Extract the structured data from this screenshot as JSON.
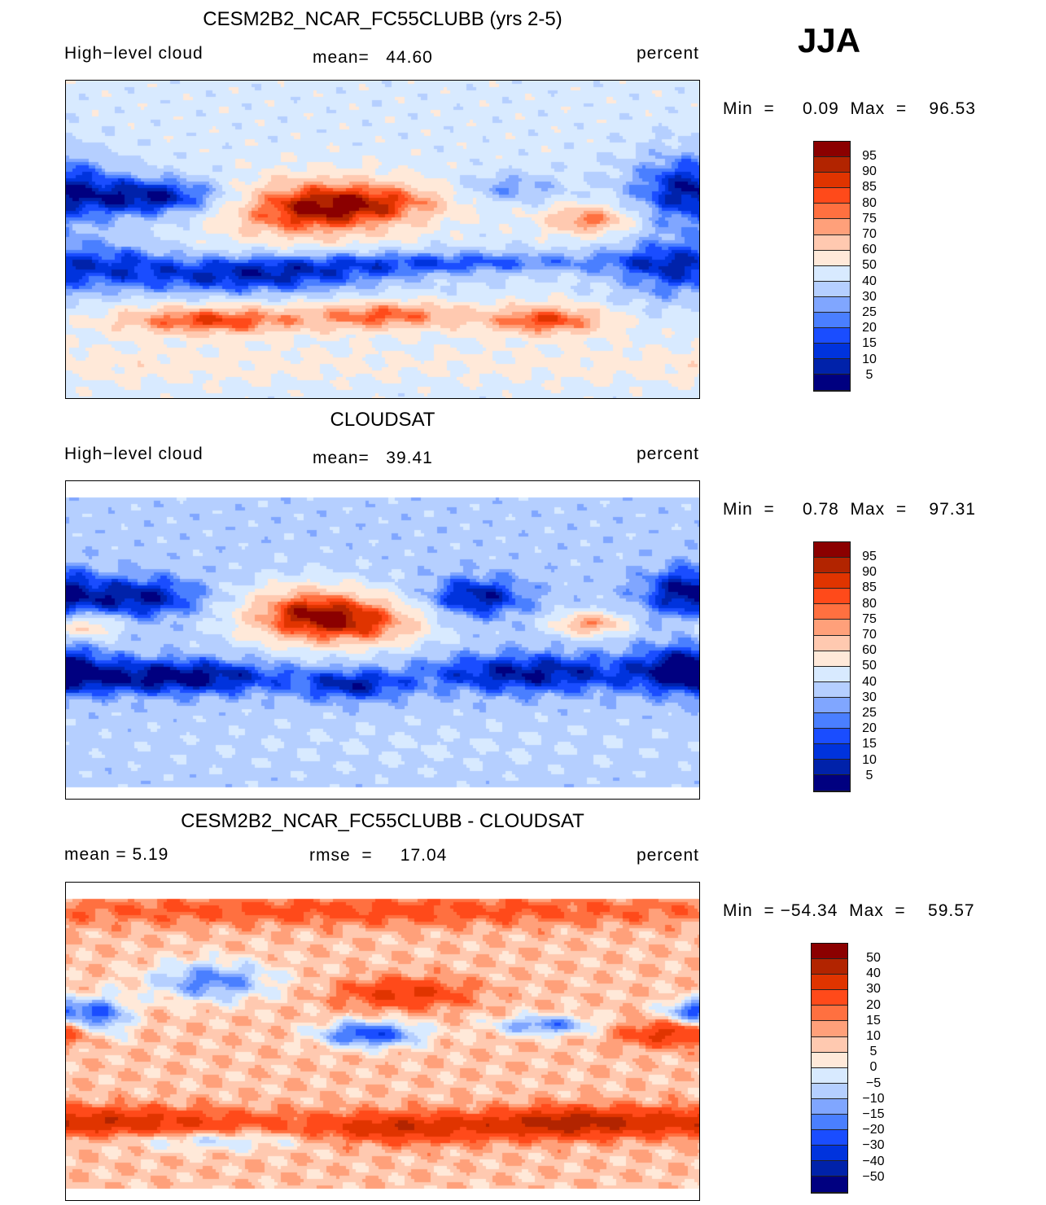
{
  "season": "JJA",
  "colors": [
    "#8b0000",
    "#b22400",
    "#e03400",
    "#ff4a1a",
    "#ff7040",
    "#ffa07a",
    "#ffc9b0",
    "#ffe9d9",
    "#d8eaff",
    "#b5cfff",
    "#80a6ff",
    "#4a7fff",
    "#1a4dff",
    "#0033dd",
    "#0022aa",
    "#000080"
  ],
  "chart_data": [
    {
      "type": "heatmap",
      "title": "CESM2B2_NCAR_FC55CLUBB (yrs 2-5)",
      "left": "High−level cloud",
      "center": "mean=   44.60",
      "units": "percent",
      "minmax": "Min  =     0.09  Max  =    96.53",
      "levels": [
        "95",
        "90",
        "85",
        "80",
        "75",
        "70",
        "60",
        "50",
        "40",
        "30",
        "25",
        "20",
        "15",
        "10",
        "5"
      ],
      "lat_range": [
        -90,
        90
      ],
      "lon_range": [
        -22,
        338
      ],
      "base": 45,
      "features": [
        [
          115,
          18,
          35,
          12,
          45
        ],
        [
          160,
          22,
          30,
          8,
          25
        ],
        [
          275,
          12,
          18,
          6,
          35
        ],
        [
          60,
          -45,
          40,
          6,
          40
        ],
        [
          160,
          -42,
          30,
          6,
          35
        ],
        [
          250,
          -45,
          25,
          6,
          40
        ],
        [
          0,
          -70,
          180,
          8,
          10
        ],
        [
          30,
          25,
          30,
          8,
          -40
        ],
        [
          330,
          30,
          25,
          15,
          -35
        ],
        [
          80,
          -20,
          60,
          8,
          -35
        ],
        [
          200,
          -12,
          80,
          5,
          -25
        ],
        [
          320,
          -15,
          25,
          15,
          -25
        ],
        [
          230,
          30,
          20,
          6,
          -20
        ],
        [
          10,
          -10,
          20,
          10,
          -15
        ]
      ]
    },
    {
      "type": "heatmap",
      "title": "CLOUDSAT",
      "left": "High−level cloud",
      "center": "mean=   39.41",
      "units": "percent",
      "minmax": "Min  =     0.78  Max  =    97.31",
      "levels": [
        "95",
        "90",
        "85",
        "80",
        "75",
        "70",
        "60",
        "50",
        "40",
        "30",
        "25",
        "20",
        "15",
        "10",
        "5"
      ],
      "lat_range": [
        -82,
        82
      ],
      "lon_range": [
        -22,
        338
      ],
      "base": 35,
      "features": [
        [
          115,
          15,
          28,
          12,
          55
        ],
        [
          155,
          10,
          25,
          10,
          30
        ],
        [
          275,
          10,
          15,
          5,
          40
        ],
        [
          350,
          8,
          12,
          5,
          30
        ],
        [
          20,
          25,
          25,
          8,
          -30
        ],
        [
          210,
          25,
          20,
          8,
          -30
        ],
        [
          330,
          28,
          18,
          10,
          -30
        ],
        [
          40,
          -20,
          45,
          7,
          -35
        ],
        [
          240,
          -18,
          45,
          8,
          -30
        ],
        [
          330,
          -15,
          20,
          10,
          -30
        ],
        [
          140,
          -25,
          20,
          6,
          -25
        ],
        [
          180,
          -60,
          100,
          10,
          5
        ]
      ]
    },
    {
      "type": "heatmap",
      "title": "CESM2B2_NCAR_FC55CLUBB - CLOUDSAT",
      "left": "mean  =     5.19",
      "center": "rmse  =     17.04",
      "units": "percent",
      "minmax": "Min  = −54.34  Max  =    59.57",
      "levels": [
        "50",
        "40",
        "30",
        "20",
        "15",
        "10",
        "5",
        "0",
        "−5",
        "−10",
        "−15",
        "−20",
        "−30",
        "−40",
        "−50"
      ],
      "lat_range": [
        -82,
        82
      ],
      "lon_range": [
        -22,
        338
      ],
      "base": 8,
      "features": [
        [
          0,
          -45,
          60,
          6,
          30
        ],
        [
          170,
          -48,
          40,
          6,
          30
        ],
        [
          260,
          -45,
          30,
          6,
          30
        ],
        [
          170,
          28,
          25,
          6,
          25
        ],
        [
          320,
          5,
          20,
          5,
          25
        ],
        [
          60,
          35,
          25,
          8,
          -25
        ],
        [
          150,
          5,
          20,
          5,
          -35
        ],
        [
          250,
          10,
          20,
          4,
          -25
        ],
        [
          335,
          18,
          12,
          5,
          -30
        ],
        [
          0,
          15,
          10,
          8,
          -25
        ],
        [
          150,
          75,
          180,
          6,
          15
        ],
        [
          60,
          -55,
          40,
          4,
          -15
        ]
      ]
    }
  ]
}
